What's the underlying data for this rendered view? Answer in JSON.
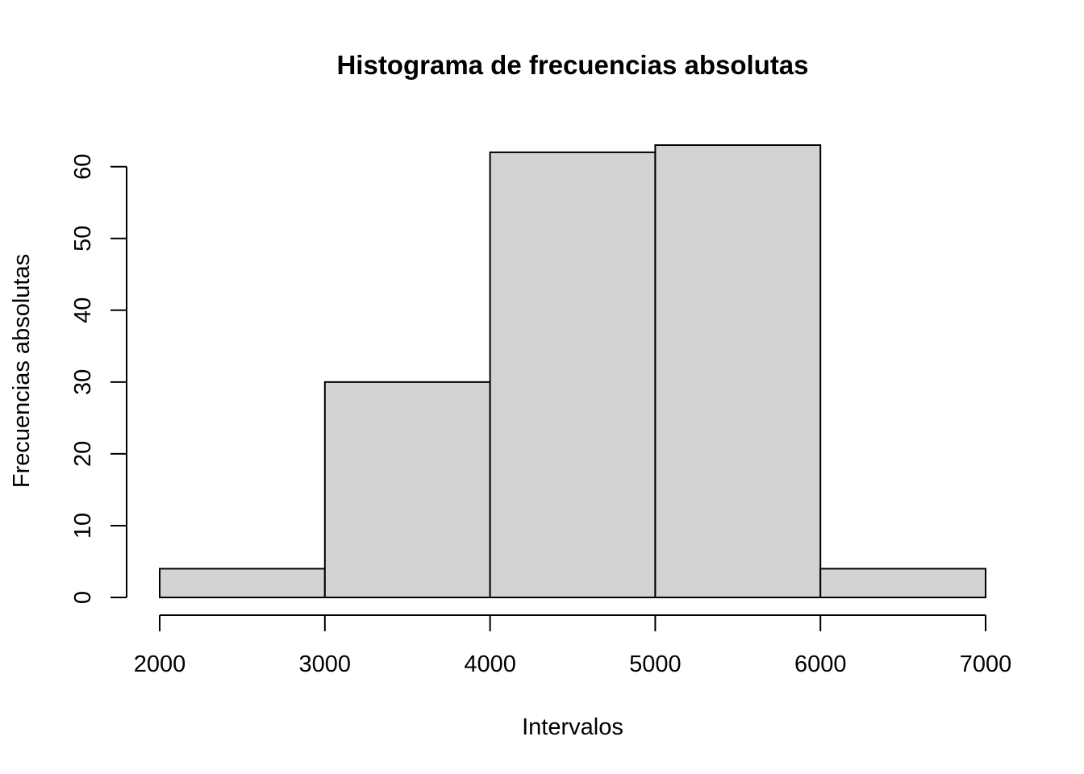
{
  "chart_data": {
    "type": "bar",
    "title": "Histograma de frecuencias absolutas",
    "xlabel": "Intervalos",
    "ylabel": "Frecuencias absolutas",
    "bins": [
      {
        "from": 2000,
        "to": 3000,
        "value": 4
      },
      {
        "from": 3000,
        "to": 4000,
        "value": 30
      },
      {
        "from": 4000,
        "to": 5000,
        "value": 62
      },
      {
        "from": 5000,
        "to": 6000,
        "value": 63
      },
      {
        "from": 6000,
        "to": 7000,
        "value": 4
      }
    ],
    "xlim": [
      2000,
      7000
    ],
    "ylim": [
      0,
      63
    ],
    "x_ticks": [
      2000,
      3000,
      4000,
      5000,
      6000,
      7000
    ],
    "y_ticks": [
      0,
      10,
      20,
      30,
      40,
      50,
      60
    ],
    "bar_color": "#d3d3d3",
    "grid": false,
    "legend": "none"
  }
}
